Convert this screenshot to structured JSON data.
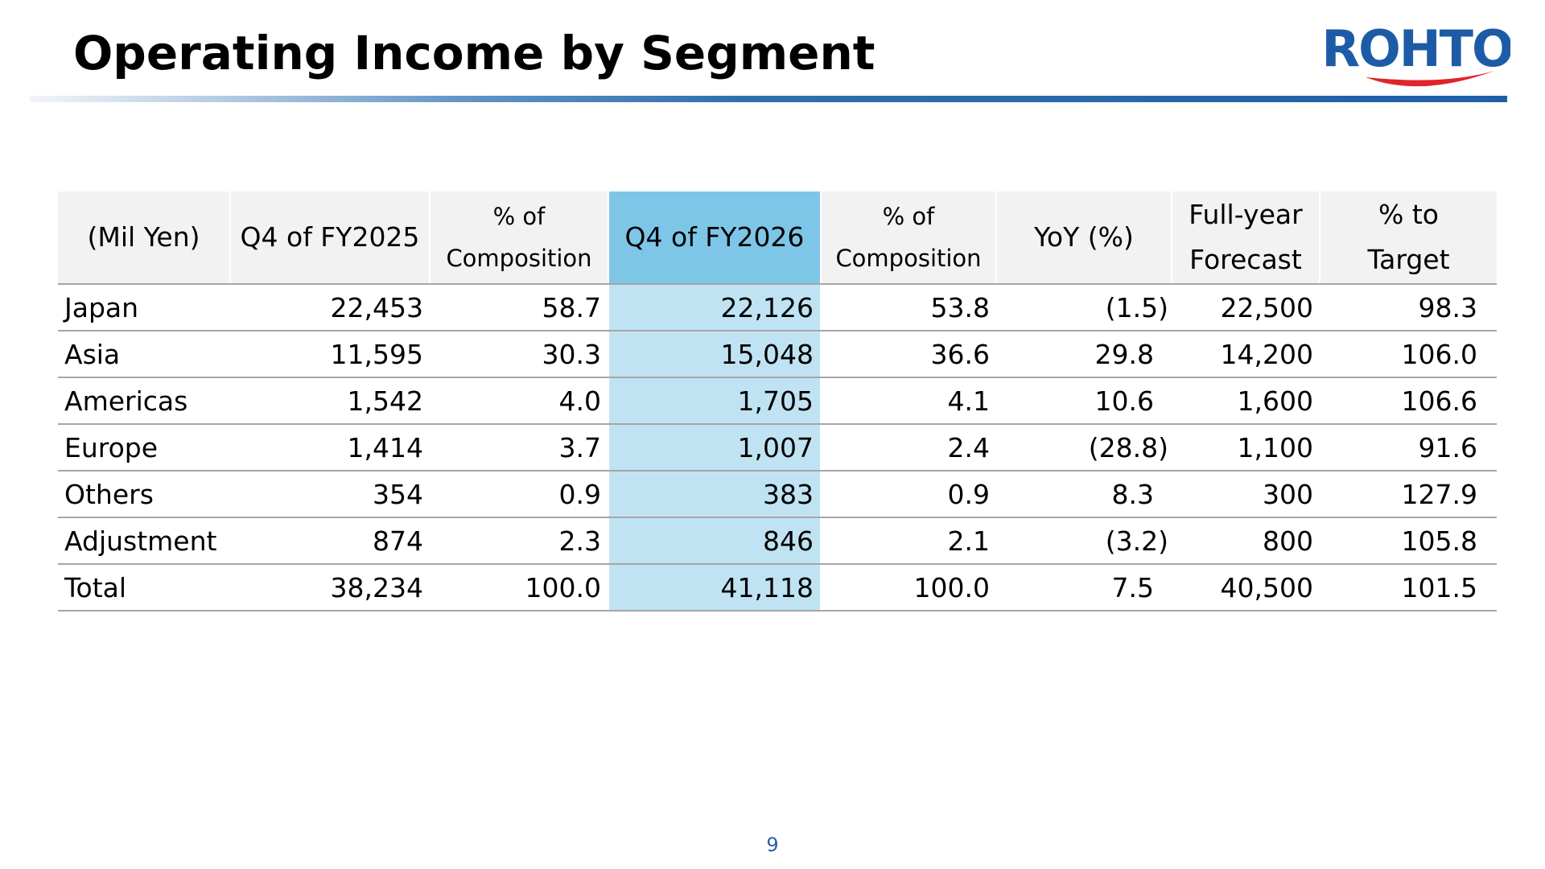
{
  "title": "Operating Income by Segment",
  "logo": {
    "text": "ROHTO",
    "icon": "rohto-logo-icon",
    "colors": {
      "text": "#1d5ba6",
      "swoosh": "#e0242b"
    }
  },
  "table": {
    "headers": {
      "unit": "(Mil Yen)",
      "prev": "Q4 of FY2025",
      "prev_comp_1": "% of",
      "prev_comp_2": "Composition",
      "curr": "Q4 of FY2026",
      "curr_comp_1": "% of",
      "curr_comp_2": "Composition",
      "yoy": "YoY (%)",
      "forecast_1": "Full-year",
      "forecast_2": "Forecast",
      "target_1": "% to",
      "target_2": "Target"
    },
    "rows": [
      {
        "segment": "Japan",
        "prev": "22,453",
        "prev_comp": "58.7",
        "curr": "22,126",
        "curr_comp": "53.8",
        "yoy": "(1.5)",
        "forecast": "22,500",
        "target": "98.3"
      },
      {
        "segment": "Asia",
        "prev": "11,595",
        "prev_comp": "30.3",
        "curr": "15,048",
        "curr_comp": "36.6",
        "yoy": "29.8",
        "forecast": "14,200",
        "target": "106.0"
      },
      {
        "segment": "Americas",
        "prev": "1,542",
        "prev_comp": "4.0",
        "curr": "1,705",
        "curr_comp": "4.1",
        "yoy": "10.6",
        "forecast": "1,600",
        "target": "106.6"
      },
      {
        "segment": "Europe",
        "prev": "1,414",
        "prev_comp": "3.7",
        "curr": "1,007",
        "curr_comp": "2.4",
        "yoy": "(28.8)",
        "forecast": "1,100",
        "target": "91.6"
      },
      {
        "segment": "Others",
        "prev": "354",
        "prev_comp": "0.9",
        "curr": "383",
        "curr_comp": "0.9",
        "yoy": "8.3",
        "forecast": "300",
        "target": "127.9"
      },
      {
        "segment": "Adjustment",
        "prev": "874",
        "prev_comp": "2.3",
        "curr": "846",
        "curr_comp": "2.1",
        "yoy": "(3.2)",
        "forecast": "800",
        "target": "105.8"
      },
      {
        "segment": "Total",
        "prev": "38,234",
        "prev_comp": "100.0",
        "curr": "41,118",
        "curr_comp": "100.0",
        "yoy": "7.5",
        "forecast": "40,500",
        "target": "101.5"
      }
    ],
    "colors": {
      "header_bg": "#f2f2f2",
      "highlight_header": "#7ec6e8",
      "highlight_cell": "#c0e3f3",
      "rule": "#a6a6a6"
    }
  },
  "page_number": "9"
}
